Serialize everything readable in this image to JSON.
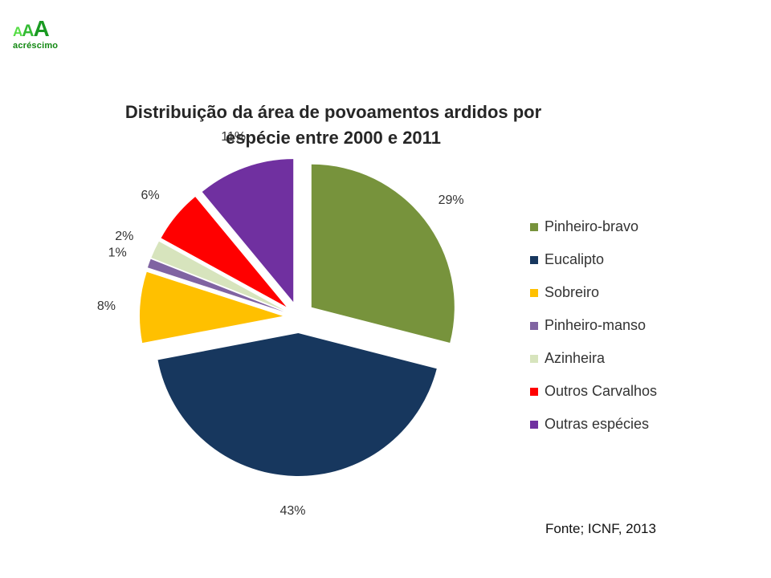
{
  "logo": {
    "letters": [
      "A",
      "A",
      "A"
    ],
    "text": "acréscimo"
  },
  "chart_data": {
    "type": "pie",
    "title": "Distribuição da área de povoamentos ardidos por espécie entre 2000 e 2011",
    "title_lines": [
      "Distribuição da área de povoamentos ardidos por",
      "espécie entre 2000 e 2011"
    ],
    "exploded": true,
    "legend_position": "right",
    "slices": [
      {
        "label": "Pinheiro-bravo",
        "value": 29,
        "display": "29%",
        "color": "#77933c"
      },
      {
        "label": "Eucalipto",
        "value": 43,
        "display": "43%",
        "color": "#17375e"
      },
      {
        "label": "Sobreiro",
        "value": 8,
        "display": "8%",
        "color": "#ffc000"
      },
      {
        "label": "Pinheiro-manso",
        "value": 1,
        "display": "1%",
        "color": "#8064a2"
      },
      {
        "label": "Azinheira",
        "value": 2,
        "display": "2%",
        "color": "#d7e4bd"
      },
      {
        "label": "Outros Carvalhos",
        "value": 6,
        "display": "6%",
        "color": "#ff0000"
      },
      {
        "label": "Outras espécies",
        "value": 11,
        "display": "11%",
        "color": "#7030a0"
      }
    ]
  },
  "source": "Fonte; ICNF, 2013"
}
